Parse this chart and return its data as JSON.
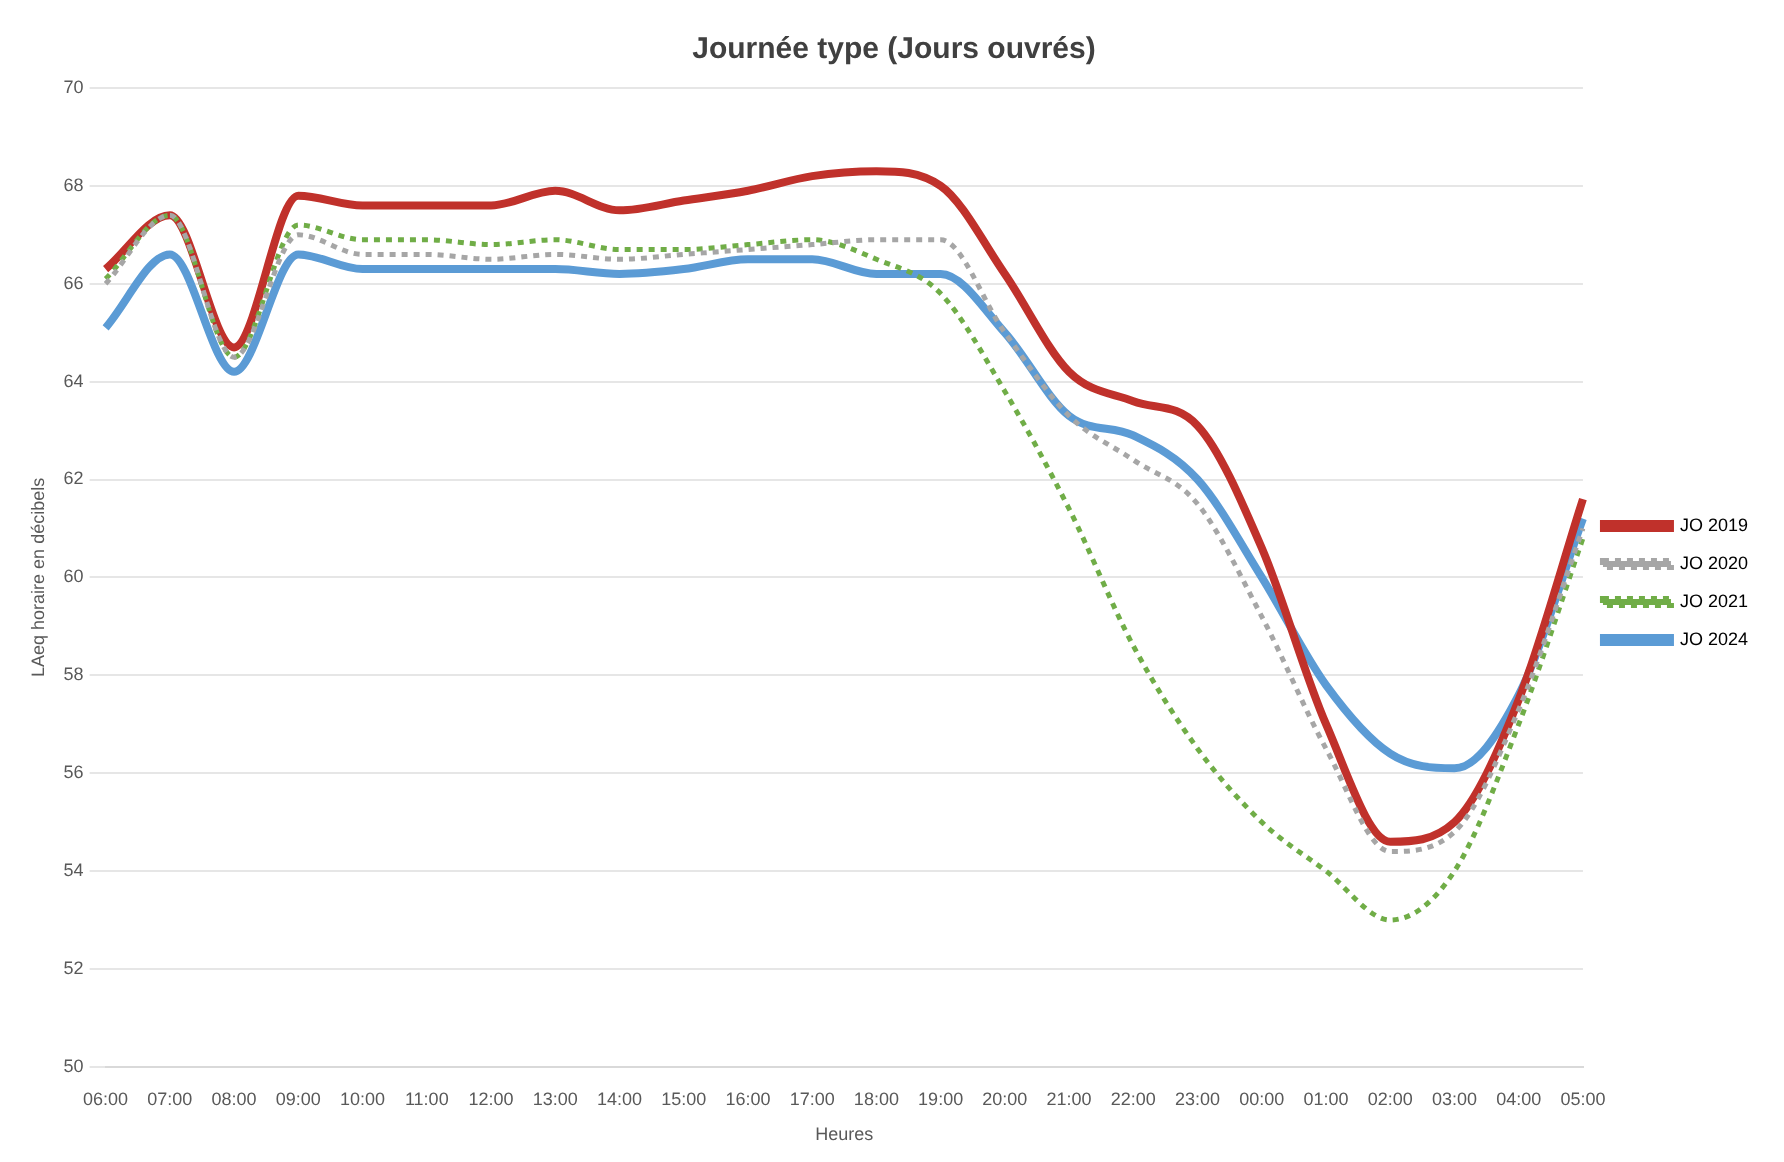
{
  "chart_data": {
    "type": "line",
    "title": "Journée type (Jours ouvrés)",
    "xlabel": "Heures",
    "ylabel": "LAeq horaire en décibels",
    "categories": [
      "06:00",
      "07:00",
      "08:00",
      "09:00",
      "10:00",
      "11:00",
      "12:00",
      "13:00",
      "14:00",
      "15:00",
      "16:00",
      "17:00",
      "18:00",
      "19:00",
      "20:00",
      "21:00",
      "22:00",
      "23:00",
      "00:00",
      "01:00",
      "02:00",
      "03:00",
      "04:00",
      "05:00"
    ],
    "series": [
      {
        "name": "JO 2019",
        "color": "#c0312b",
        "line_style": "solid",
        "values": [
          66.3,
          67.4,
          64.7,
          67.8,
          67.6,
          67.6,
          67.6,
          67.9,
          67.5,
          67.7,
          67.9,
          68.2,
          68.3,
          68.0,
          66.2,
          64.2,
          63.6,
          63.1,
          60.6,
          57.0,
          54.6,
          55.0,
          57.5,
          61.6
        ]
      },
      {
        "name": "JO 2020",
        "color": "#a6a6a6",
        "line_style": "dotted",
        "values": [
          66.0,
          67.4,
          64.5,
          67.0,
          66.6,
          66.6,
          66.5,
          66.6,
          66.5,
          66.6,
          66.7,
          66.8,
          66.9,
          66.9,
          65.0,
          63.3,
          62.4,
          61.5,
          59.2,
          56.5,
          54.4,
          54.8,
          57.3,
          61.0
        ]
      },
      {
        "name": "JO 2021",
        "color": "#70ad47",
        "line_style": "dotted",
        "values": [
          66.1,
          67.4,
          64.5,
          67.2,
          66.9,
          66.9,
          66.8,
          66.9,
          66.7,
          66.7,
          66.8,
          66.9,
          66.5,
          65.8,
          63.8,
          61.4,
          58.6,
          56.5,
          55.0,
          54.0,
          53.0,
          54.0,
          57.0,
          60.8
        ]
      },
      {
        "name": "JO 2024",
        "color": "#5b9bd5",
        "line_style": "solid",
        "values": [
          65.1,
          66.6,
          64.2,
          66.6,
          66.3,
          66.3,
          66.3,
          66.3,
          66.2,
          66.3,
          66.5,
          66.5,
          66.2,
          66.2,
          65.0,
          63.3,
          62.9,
          62.0,
          60.0,
          57.8,
          56.4,
          56.1,
          57.6,
          61.2
        ]
      }
    ],
    "ylim": [
      50,
      70
    ],
    "yticks": [
      50,
      52,
      54,
      56,
      58,
      60,
      62,
      64,
      66,
      68,
      70
    ],
    "grid": "y",
    "legend": "right",
    "marker": "none"
  }
}
